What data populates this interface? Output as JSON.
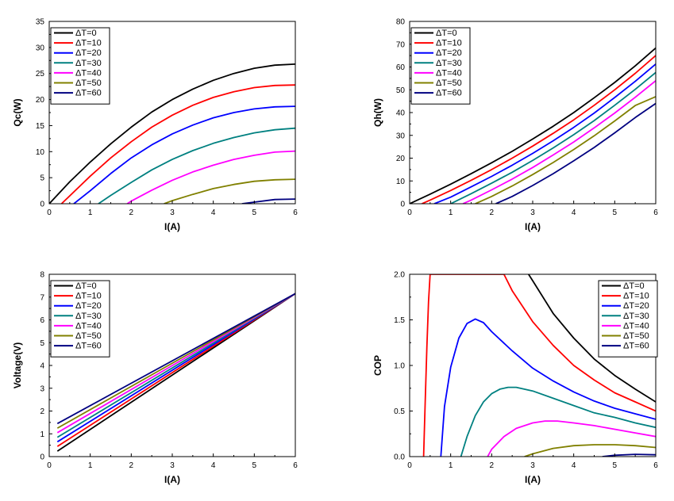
{
  "chart_data": [
    {
      "id": "qc",
      "type": "line",
      "xlabel": "I(A)",
      "ylabel": "Qc(W)",
      "xlim": [
        0,
        6
      ],
      "ylim": [
        0,
        35
      ],
      "xticks": [
        0,
        1,
        2,
        3,
        4,
        5,
        6
      ],
      "yticks": [
        0,
        5,
        10,
        15,
        20,
        25,
        30,
        35
      ],
      "grid": false,
      "legend_position": "top-left",
      "series": [
        {
          "name": "ΔT=0",
          "color": "#000000",
          "x": [
            0,
            0.5,
            1,
            1.5,
            2,
            2.5,
            3,
            3.5,
            4,
            4.5,
            5,
            5.5,
            6
          ],
          "y": [
            0,
            4.2,
            8.0,
            11.5,
            14.7,
            17.6,
            20.0,
            22.0,
            23.7,
            25.0,
            26.0,
            26.6,
            26.8
          ]
        },
        {
          "name": "ΔT=10",
          "color": "#ff0000",
          "x": [
            0.3,
            0.5,
            1,
            1.5,
            2,
            2.5,
            3,
            3.5,
            4,
            4.5,
            5,
            5.5,
            6
          ],
          "y": [
            0,
            1.5,
            5.3,
            8.8,
            11.9,
            14.7,
            17.0,
            18.9,
            20.4,
            21.5,
            22.3,
            22.7,
            22.8
          ]
        },
        {
          "name": "ΔT=20",
          "color": "#0000ff",
          "x": [
            0.6,
            1,
            1.5,
            2,
            2.5,
            3,
            3.5,
            4,
            4.5,
            5,
            5.5,
            6
          ],
          "y": [
            0,
            2.5,
            5.8,
            8.8,
            11.3,
            13.4,
            15.1,
            16.5,
            17.5,
            18.2,
            18.6,
            18.7
          ]
        },
        {
          "name": "ΔT=30",
          "color": "#008080",
          "x": [
            1.2,
            1.5,
            2,
            2.5,
            3,
            3.5,
            4,
            4.5,
            5,
            5.5,
            6
          ],
          "y": [
            0,
            1.6,
            4.1,
            6.5,
            8.5,
            10.2,
            11.6,
            12.7,
            13.6,
            14.2,
            14.5
          ]
        },
        {
          "name": "ΔT=40",
          "color": "#ff00ff",
          "x": [
            1.9,
            2,
            2.5,
            3,
            3.5,
            4,
            4.5,
            5,
            5.5,
            6
          ],
          "y": [
            0,
            0.5,
            2.6,
            4.5,
            6.1,
            7.4,
            8.5,
            9.3,
            9.9,
            10.1
          ]
        },
        {
          "name": "ΔT=50",
          "color": "#808000",
          "x": [
            2.8,
            3,
            3.5,
            4,
            4.5,
            5,
            5.5,
            6
          ],
          "y": [
            0,
            0.6,
            1.8,
            2.9,
            3.7,
            4.3,
            4.6,
            4.7
          ]
        },
        {
          "name": "ΔT=60",
          "color": "#000080",
          "x": [
            4.7,
            5,
            5.5,
            6
          ],
          "y": [
            0,
            0.3,
            0.8,
            0.9
          ]
        }
      ]
    },
    {
      "id": "qh",
      "type": "line",
      "xlabel": "I(A)",
      "ylabel": "Qh(W)",
      "xlim": [
        0,
        6
      ],
      "ylim": [
        0,
        80
      ],
      "xticks": [
        0,
        1,
        2,
        3,
        4,
        5,
        6
      ],
      "yticks": [
        0,
        10,
        20,
        30,
        40,
        50,
        60,
        70,
        80
      ],
      "grid": false,
      "legend_position": "top-left",
      "series": [
        {
          "name": "ΔT=0",
          "color": "#000000",
          "x": [
            0,
            0.5,
            1,
            1.5,
            2,
            2.5,
            3,
            3.5,
            4,
            4.5,
            5,
            5.5,
            6
          ],
          "y": [
            0,
            4.2,
            8.6,
            13.2,
            18.0,
            23.0,
            28.4,
            34.0,
            40.0,
            46.5,
            53.2,
            60.5,
            68.3
          ]
        },
        {
          "name": "ΔT=10",
          "color": "#ff0000",
          "x": [
            0.3,
            0.5,
            1,
            1.5,
            2,
            2.5,
            3,
            3.5,
            4,
            4.5,
            5,
            5.5,
            6
          ],
          "y": [
            0,
            1.6,
            5.8,
            10.3,
            15.0,
            20.0,
            25.3,
            30.9,
            36.8,
            43.2,
            50.0,
            57.2,
            65.0
          ]
        },
        {
          "name": "ΔT=20",
          "color": "#0000ff",
          "x": [
            0.6,
            1,
            1.5,
            2,
            2.5,
            3,
            3.5,
            4,
            4.5,
            5,
            5.5,
            6
          ],
          "y": [
            0,
            2.9,
            7.4,
            12.0,
            16.9,
            22.1,
            27.6,
            33.5,
            39.8,
            46.6,
            53.7,
            61.3
          ]
        },
        {
          "name": "ΔT=30",
          "color": "#008080",
          "x": [
            1.0,
            1.5,
            2,
            2.5,
            3,
            3.5,
            4,
            4.5,
            5,
            5.5,
            6
          ],
          "y": [
            0,
            4.4,
            9.0,
            13.8,
            19.0,
            24.5,
            30.3,
            36.5,
            43.2,
            50.2,
            57.6
          ]
        },
        {
          "name": "ΔT=40",
          "color": "#ff00ff",
          "x": [
            1.3,
            1.5,
            2,
            2.5,
            3,
            3.5,
            4,
            4.5,
            5,
            5.5,
            6
          ],
          "y": [
            0,
            1.6,
            6.1,
            10.8,
            15.9,
            21.4,
            27.1,
            33.3,
            39.8,
            46.7,
            54.0
          ]
        },
        {
          "name": "ΔT=50",
          "color": "#808000",
          "x": [
            1.6,
            2,
            2.5,
            3,
            3.5,
            4,
            4.5,
            5,
            5.5,
            6
          ],
          "y": [
            0,
            3.2,
            7.8,
            12.8,
            18.1,
            23.8,
            29.8,
            36.3,
            43.1,
            47.0
          ]
        },
        {
          "name": "ΔT=60",
          "color": "#000080",
          "x": [
            2.1,
            2.5,
            3,
            3.5,
            4,
            4.5,
            5,
            5.5,
            6
          ],
          "y": [
            0,
            3.2,
            8.0,
            13.2,
            18.8,
            24.7,
            31.1,
            37.8,
            44.0
          ]
        }
      ]
    },
    {
      "id": "voltage",
      "type": "line",
      "xlabel": "I(A)",
      "ylabel": "Voltage(V)",
      "xlim": [
        0,
        6
      ],
      "ylim": [
        0,
        8
      ],
      "xticks": [
        0,
        1,
        2,
        3,
        4,
        5,
        6
      ],
      "yticks": [
        0,
        1,
        2,
        3,
        4,
        5,
        6,
        7,
        8
      ],
      "grid": false,
      "legend_position": "top-left",
      "series": [
        {
          "name": "ΔT=0",
          "color": "#000000",
          "x": [
            0.2,
            6
          ],
          "y": [
            0.24,
            7.15
          ]
        },
        {
          "name": "ΔT=10",
          "color": "#ff0000",
          "x": [
            0.2,
            6
          ],
          "y": [
            0.45,
            7.15
          ]
        },
        {
          "name": "ΔT=20",
          "color": "#0000ff",
          "x": [
            0.2,
            6
          ],
          "y": [
            0.65,
            7.15
          ]
        },
        {
          "name": "ΔT=30",
          "color": "#008080",
          "x": [
            0.2,
            6
          ],
          "y": [
            0.85,
            7.15
          ]
        },
        {
          "name": "ΔT=40",
          "color": "#ff00ff",
          "x": [
            0.2,
            6
          ],
          "y": [
            1.05,
            7.15
          ]
        },
        {
          "name": "ΔT=50",
          "color": "#808000",
          "x": [
            0.2,
            6
          ],
          "y": [
            1.25,
            7.15
          ]
        },
        {
          "name": "ΔT=60",
          "color": "#000080",
          "x": [
            0.2,
            6
          ],
          "y": [
            1.45,
            7.15
          ]
        }
      ]
    },
    {
      "id": "cop",
      "type": "line",
      "xlabel": "I(A)",
      "ylabel": "COP",
      "xlim": [
        0,
        6
      ],
      "ylim": [
        0,
        2.0
      ],
      "xticks": [
        0,
        1,
        2,
        3,
        4,
        5,
        6
      ],
      "yticks": [
        "0.0",
        "0.5",
        "1.0",
        "1.5",
        "2.0"
      ],
      "grid": false,
      "legend_position": "top-right",
      "series": [
        {
          "name": "ΔT=0",
          "color": "#000000",
          "x": [
            2.9,
            3,
            3.5,
            4,
            4.5,
            5,
            5.5,
            6
          ],
          "y": [
            2.0,
            1.93,
            1.57,
            1.3,
            1.07,
            0.89,
            0.74,
            0.6
          ]
        },
        {
          "name": "ΔT=10",
          "color": "#ff0000",
          "x": [
            0.34,
            0.38,
            0.42,
            0.46,
            0.5,
            2.3,
            2.5,
            3,
            3.5,
            4,
            4.5,
            5,
            5.5,
            6
          ],
          "y": [
            0,
            0.6,
            1.2,
            1.7,
            2.0,
            2.0,
            1.82,
            1.48,
            1.22,
            1.0,
            0.84,
            0.7,
            0.6,
            0.5
          ]
        },
        {
          "name": "ΔT=20",
          "color": "#0000ff",
          "x": [
            0.76,
            0.85,
            1,
            1.2,
            1.4,
            1.6,
            1.8,
            2,
            2.5,
            3,
            3.5,
            4,
            4.5,
            5,
            5.5,
            6
          ],
          "y": [
            0,
            0.55,
            0.98,
            1.3,
            1.46,
            1.51,
            1.47,
            1.37,
            1.16,
            0.97,
            0.83,
            0.71,
            0.61,
            0.53,
            0.47,
            0.41
          ]
        },
        {
          "name": "ΔT=30",
          "color": "#008080",
          "x": [
            1.25,
            1.4,
            1.6,
            1.8,
            2,
            2.2,
            2.4,
            2.6,
            3,
            3.5,
            4,
            4.5,
            5,
            5.5,
            6
          ],
          "y": [
            0,
            0.22,
            0.45,
            0.6,
            0.69,
            0.74,
            0.76,
            0.76,
            0.72,
            0.64,
            0.56,
            0.48,
            0.43,
            0.37,
            0.32
          ]
        },
        {
          "name": "ΔT=40",
          "color": "#ff00ff",
          "x": [
            1.9,
            2,
            2.3,
            2.6,
            3,
            3.3,
            3.6,
            4,
            4.5,
            5,
            5.5,
            6
          ],
          "y": [
            0,
            0.08,
            0.22,
            0.31,
            0.37,
            0.39,
            0.39,
            0.37,
            0.34,
            0.3,
            0.26,
            0.22
          ]
        },
        {
          "name": "ΔT=50",
          "color": "#808000",
          "x": [
            2.8,
            3,
            3.5,
            4,
            4.5,
            5,
            5.5,
            6
          ],
          "y": [
            0,
            0.03,
            0.09,
            0.12,
            0.13,
            0.13,
            0.12,
            0.1
          ]
        },
        {
          "name": "ΔT=60",
          "color": "#000080",
          "x": [
            4.7,
            5,
            5.5,
            6
          ],
          "y": [
            0,
            0.015,
            0.025,
            0.02
          ]
        }
      ]
    }
  ]
}
